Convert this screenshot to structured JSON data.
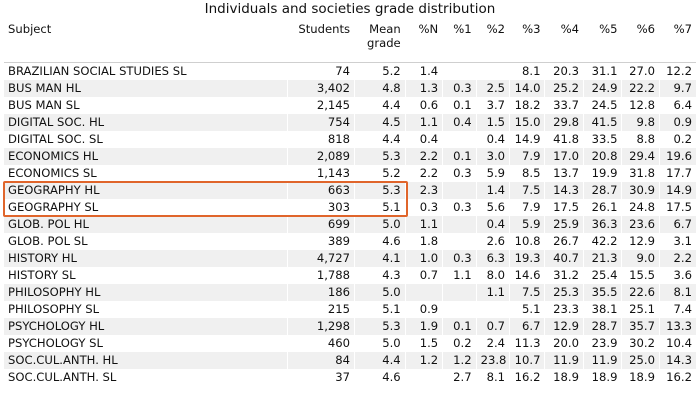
{
  "title": "Individuals and societies grade distribution",
  "columns": [
    "Subject",
    "Students",
    "Mean grade",
    "%N",
    "%1",
    "%2",
    "%3",
    "%4",
    "%5",
    "%6",
    "%7"
  ],
  "rows": [
    [
      "BRAZILIAN SOCIAL STUDIES SL",
      "74",
      "5.2",
      "1.4",
      "",
      "",
      "8.1",
      "20.3",
      "31.1",
      "27.0",
      "12.2"
    ],
    [
      "BUS MAN HL",
      "3,402",
      "4.8",
      "1.3",
      "0.3",
      "2.5",
      "14.0",
      "25.2",
      "24.9",
      "22.2",
      "9.7"
    ],
    [
      "BUS MAN SL",
      "2,145",
      "4.4",
      "0.6",
      "0.1",
      "3.7",
      "18.2",
      "33.7",
      "24.5",
      "12.8",
      "6.4"
    ],
    [
      "DIGITAL SOC. HL",
      "754",
      "4.5",
      "1.1",
      "0.4",
      "1.5",
      "15.0",
      "29.8",
      "41.5",
      "9.8",
      "0.9"
    ],
    [
      "DIGITAL SOC. SL",
      "818",
      "4.4",
      "0.4",
      "",
      "0.4",
      "14.9",
      "41.8",
      "33.5",
      "8.8",
      "0.2"
    ],
    [
      "ECONOMICS HL",
      "2,089",
      "5.3",
      "2.2",
      "0.1",
      "3.0",
      "7.9",
      "17.0",
      "20.8",
      "29.4",
      "19.6"
    ],
    [
      "ECONOMICS SL",
      "1,143",
      "5.2",
      "2.2",
      "0.3",
      "5.9",
      "8.5",
      "13.7",
      "19.9",
      "31.8",
      "17.7"
    ],
    [
      "GEOGRAPHY HL",
      "663",
      "5.3",
      "2.3",
      "",
      "1.4",
      "7.5",
      "14.3",
      "28.7",
      "30.9",
      "14.9"
    ],
    [
      "GEOGRAPHY SL",
      "303",
      "5.1",
      "0.3",
      "0.3",
      "5.6",
      "7.9",
      "17.5",
      "26.1",
      "24.8",
      "17.5"
    ],
    [
      "GLOB. POL HL",
      "699",
      "5.0",
      "1.1",
      "",
      "0.4",
      "5.9",
      "25.9",
      "36.3",
      "23.6",
      "6.7"
    ],
    [
      "GLOB. POL SL",
      "389",
      "4.6",
      "1.8",
      "",
      "2.6",
      "10.8",
      "26.7",
      "42.2",
      "12.9",
      "3.1"
    ],
    [
      "HISTORY HL",
      "4,727",
      "4.1",
      "1.0",
      "0.3",
      "6.3",
      "19.3",
      "40.7",
      "21.3",
      "9.0",
      "2.2"
    ],
    [
      "HISTORY SL",
      "1,788",
      "4.3",
      "0.7",
      "1.1",
      "8.0",
      "14.6",
      "31.2",
      "25.4",
      "15.5",
      "3.6"
    ],
    [
      "PHILOSOPHY HL",
      "186",
      "5.0",
      "",
      "",
      "1.1",
      "7.5",
      "25.3",
      "35.5",
      "22.6",
      "8.1"
    ],
    [
      "PHILOSOPHY SL",
      "215",
      "5.1",
      "0.9",
      "",
      "",
      "5.1",
      "23.3",
      "38.1",
      "25.1",
      "7.4"
    ],
    [
      "PSYCHOLOGY HL",
      "1,298",
      "5.3",
      "1.9",
      "0.1",
      "0.7",
      "6.7",
      "12.9",
      "28.7",
      "35.7",
      "13.3"
    ],
    [
      "PSYCHOLOGY SL",
      "460",
      "5.0",
      "1.5",
      "0.2",
      "2.4",
      "11.3",
      "20.0",
      "23.9",
      "30.2",
      "10.4"
    ],
    [
      "SOC.CUL.ANTH. HL",
      "84",
      "4.4",
      "1.2",
      "1.2",
      "23.8",
      "10.7",
      "11.9",
      "11.9",
      "25.0",
      "14.3"
    ],
    [
      "SOC.CUL.ANTH. SL",
      "37",
      "4.6",
      "",
      "2.7",
      "8.1",
      "16.2",
      "18.9",
      "18.9",
      "18.9",
      "16.2"
    ]
  ],
  "highlight": {
    "rows": [
      "GEOGRAPHY HL",
      "GEOGRAPHY SL"
    ],
    "color": "#e0652b"
  }
}
